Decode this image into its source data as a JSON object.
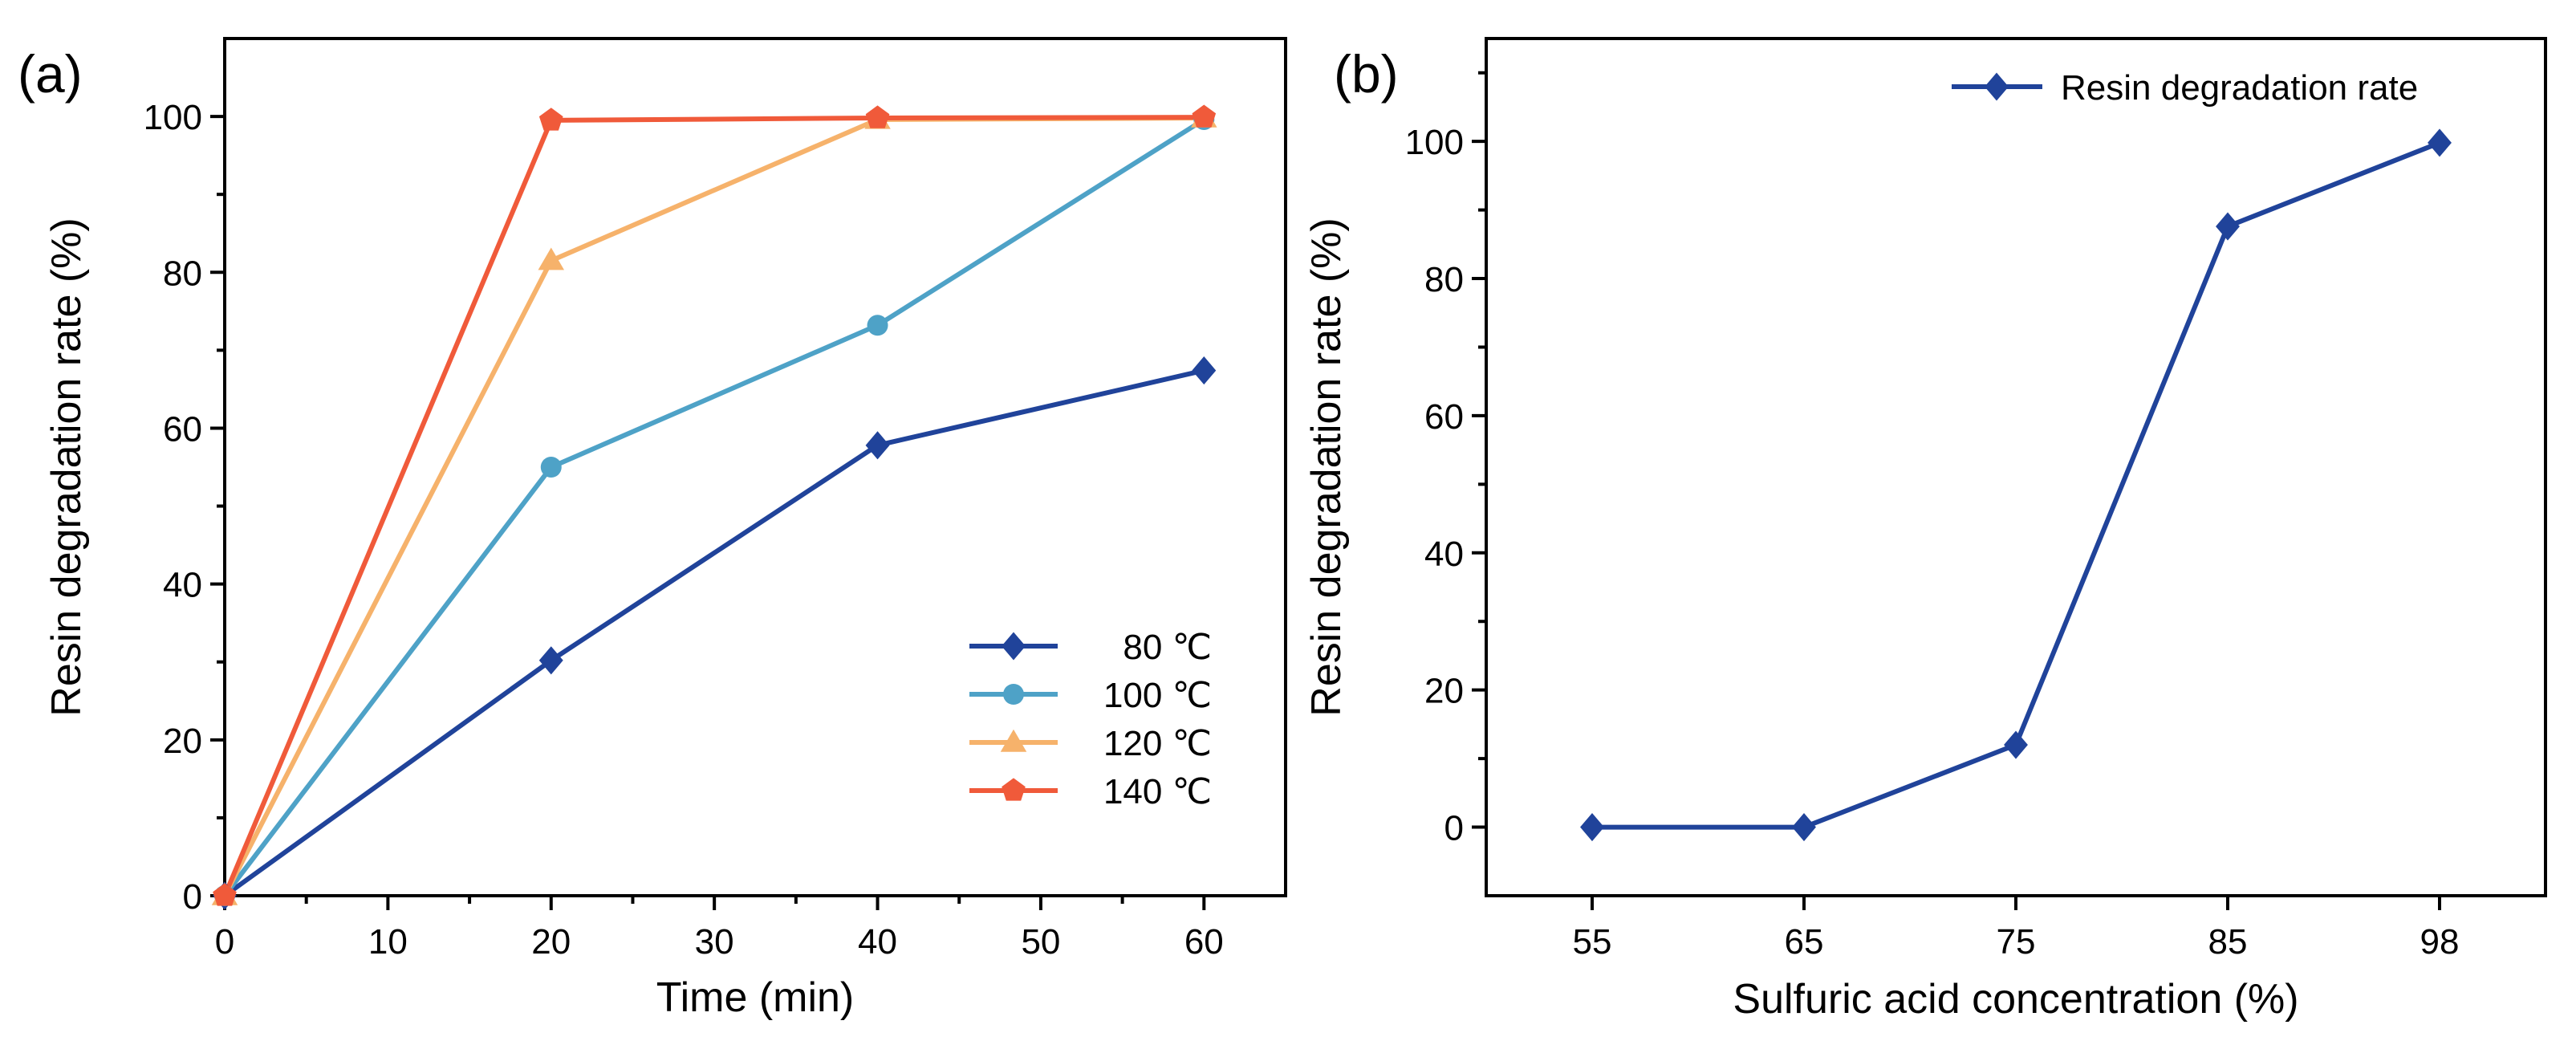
{
  "chart_data": [
    {
      "type": "line",
      "panel_label": "(a)",
      "xlabel": "Time (min)",
      "ylabel": "Resin degradation rate (%)",
      "xlim": [
        0,
        65
      ],
      "ylim": [
        0,
        110
      ],
      "xticks": [
        0,
        10,
        20,
        30,
        40,
        50,
        60
      ],
      "yticks": [
        0,
        20,
        40,
        60,
        80,
        100
      ],
      "x": [
        0,
        20,
        40,
        60
      ],
      "legend_position": "lower-right",
      "series": [
        {
          "name": "80 ℃",
          "color": "#20439a",
          "marker": "diamond",
          "values": [
            0,
            30.2,
            57.8,
            67.4
          ]
        },
        {
          "name": "100 ℃",
          "color": "#4ea2c7",
          "marker": "circle",
          "values": [
            0,
            55.0,
            73.2,
            99.6
          ]
        },
        {
          "name": "120 ℃",
          "color": "#f6b26b",
          "marker": "triangle",
          "values": [
            0,
            81.5,
            99.6,
            99.8
          ]
        },
        {
          "name": "140 ℃",
          "color": "#f05a3a",
          "marker": "pentagon",
          "values": [
            0,
            99.5,
            99.8,
            99.9
          ]
        }
      ]
    },
    {
      "type": "line",
      "panel_label": "(b)",
      "xlabel": "Sulfuric acid concentration (%)",
      "ylabel": "Resin degradation rate (%)",
      "ylim": [
        -10,
        115
      ],
      "yticks": [
        0,
        20,
        40,
        60,
        80,
        100
      ],
      "categories": [
        "55",
        "65",
        "75",
        "85",
        "98"
      ],
      "legend_position": "top-right",
      "series": [
        {
          "name": "Resin degradation rate",
          "color": "#20439a",
          "marker": "diamond",
          "values": [
            0,
            0,
            12,
            87.6,
            99.8
          ]
        }
      ]
    }
  ]
}
